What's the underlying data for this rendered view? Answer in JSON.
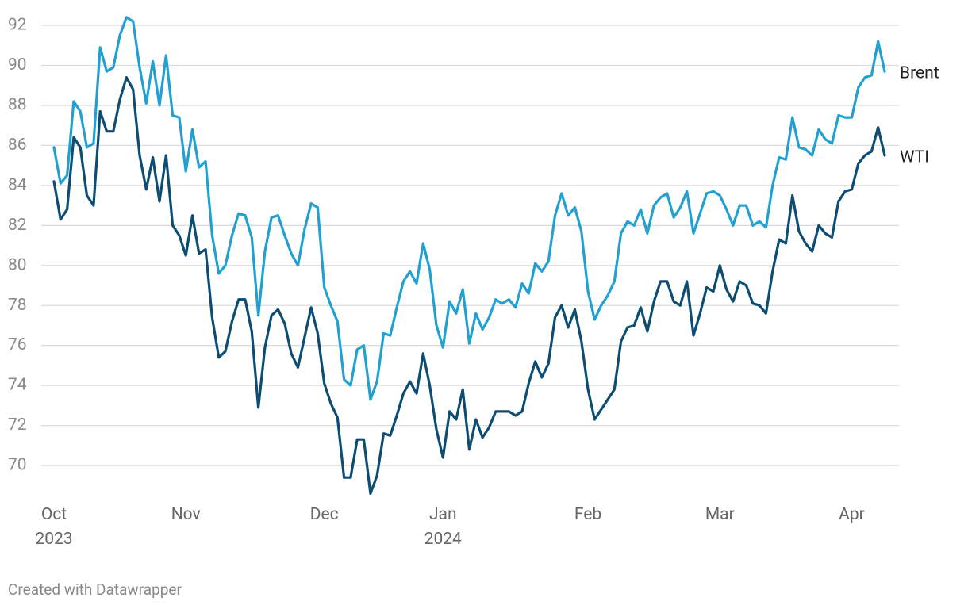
{
  "chart_data": {
    "type": "line",
    "categories": [
      "Oct\n2023",
      null,
      null,
      null,
      null,
      null,
      null,
      null,
      null,
      null,
      null,
      null,
      null,
      null,
      null,
      null,
      null,
      null,
      null,
      null,
      "Nov",
      null,
      null,
      null,
      null,
      null,
      null,
      null,
      null,
      null,
      null,
      null,
      null,
      null,
      null,
      null,
      null,
      null,
      null,
      null,
      null,
      "Dec",
      null,
      null,
      null,
      null,
      null,
      null,
      null,
      null,
      null,
      null,
      null,
      null,
      null,
      null,
      null,
      null,
      null,
      "Jan\n2024",
      null,
      null,
      null,
      null,
      null,
      null,
      null,
      null,
      null,
      null,
      null,
      null,
      null,
      null,
      null,
      null,
      null,
      null,
      null,
      null,
      null,
      "Feb",
      null,
      null,
      null,
      null,
      null,
      null,
      null,
      null,
      null,
      null,
      null,
      null,
      null,
      null,
      null,
      null,
      null,
      null,
      null,
      "Mar",
      null,
      null,
      null,
      null,
      null,
      null,
      null,
      null,
      null,
      null,
      null,
      null,
      null,
      null,
      null,
      null,
      null,
      null,
      null,
      "Apr",
      null,
      null,
      null,
      null,
      null
    ],
    "series": [
      {
        "name": "Brent",
        "color": "#21a0d2",
        "values": [
          85.9,
          84.1,
          84.5,
          88.2,
          87.7,
          85.9,
          86.1,
          90.9,
          89.7,
          89.9,
          91.5,
          92.4,
          92.2,
          89.9,
          88.1,
          90.2,
          88.0,
          90.5,
          87.5,
          87.4,
          84.7,
          86.8,
          84.9,
          85.2,
          81.5,
          79.6,
          80.0,
          81.5,
          82.6,
          82.5,
          81.4,
          77.5,
          80.7,
          82.4,
          82.5,
          81.5,
          80.6,
          80.0,
          81.8,
          83.1,
          82.9,
          78.9,
          78.0,
          77.2,
          74.3,
          74.0,
          75.8,
          76.0,
          73.3,
          74.2,
          76.6,
          76.5,
          77.9,
          79.2,
          79.7,
          79.1,
          81.1,
          79.8,
          77.0,
          75.9,
          78.2,
          77.6,
          78.8,
          76.1,
          77.6,
          76.8,
          77.4,
          78.3,
          78.1,
          78.3,
          77.9,
          79.1,
          78.6,
          80.1,
          79.7,
          80.2,
          82.5,
          83.6,
          82.5,
          82.9,
          81.7,
          78.7,
          77.3,
          78.0,
          78.5,
          79.2,
          81.6,
          82.2,
          82.0,
          82.8,
          81.6,
          83.0,
          83.4,
          83.6,
          82.4,
          82.9,
          83.7,
          81.6,
          82.6,
          83.6,
          83.7,
          83.5,
          82.8,
          82.0,
          83.0,
          83.0,
          82.0,
          82.2,
          81.9,
          84.0,
          85.4,
          85.3,
          87.4,
          85.9,
          85.8,
          85.5,
          86.8,
          86.3,
          86.1,
          87.5,
          87.4,
          87.4,
          88.9,
          89.4,
          89.5,
          91.2,
          89.7
        ]
      },
      {
        "name": "WTI",
        "color": "#0d4d73",
        "values": [
          84.2,
          82.3,
          82.8,
          86.4,
          85.9,
          83.5,
          83.0,
          87.7,
          86.7,
          86.7,
          88.3,
          89.4,
          88.8,
          85.5,
          83.8,
          85.4,
          83.2,
          85.5,
          82.0,
          81.5,
          80.5,
          82.5,
          80.6,
          80.8,
          77.4,
          75.4,
          75.7,
          77.2,
          78.3,
          78.3,
          76.7,
          72.9,
          75.9,
          77.5,
          77.8,
          77.1,
          75.6,
          74.9,
          76.4,
          77.9,
          76.6,
          74.1,
          73.1,
          72.4,
          69.4,
          69.4,
          71.3,
          71.3,
          68.6,
          69.5,
          71.6,
          71.5,
          72.5,
          73.6,
          74.2,
          73.6,
          75.6,
          74.0,
          71.8,
          70.4,
          72.7,
          72.3,
          73.8,
          70.8,
          72.3,
          71.4,
          71.9,
          72.7,
          72.7,
          72.7,
          72.5,
          72.7,
          74.1,
          75.2,
          74.4,
          75.1,
          77.4,
          78.0,
          76.9,
          77.8,
          76.2,
          73.8,
          72.3,
          72.8,
          73.3,
          73.8,
          76.2,
          76.9,
          77.0,
          77.9,
          76.7,
          78.2,
          79.2,
          79.2,
          78.2,
          78.0,
          79.2,
          76.5,
          77.6,
          78.9,
          78.7,
          80.0,
          78.8,
          78.2,
          79.2,
          79.0,
          78.1,
          78.0,
          77.6,
          79.7,
          81.3,
          81.1,
          83.5,
          81.7,
          81.1,
          80.7,
          82.0,
          81.6,
          81.4,
          83.2,
          83.7,
          83.8,
          85.1,
          85.5,
          85.7,
          86.9,
          85.5
        ]
      }
    ],
    "ylim": [
      68,
      93
    ],
    "yticks": [
      70,
      72,
      74,
      76,
      78,
      80,
      82,
      84,
      86,
      88,
      90,
      92
    ],
    "grid": true,
    "credit": "Created with Datawrapper"
  }
}
